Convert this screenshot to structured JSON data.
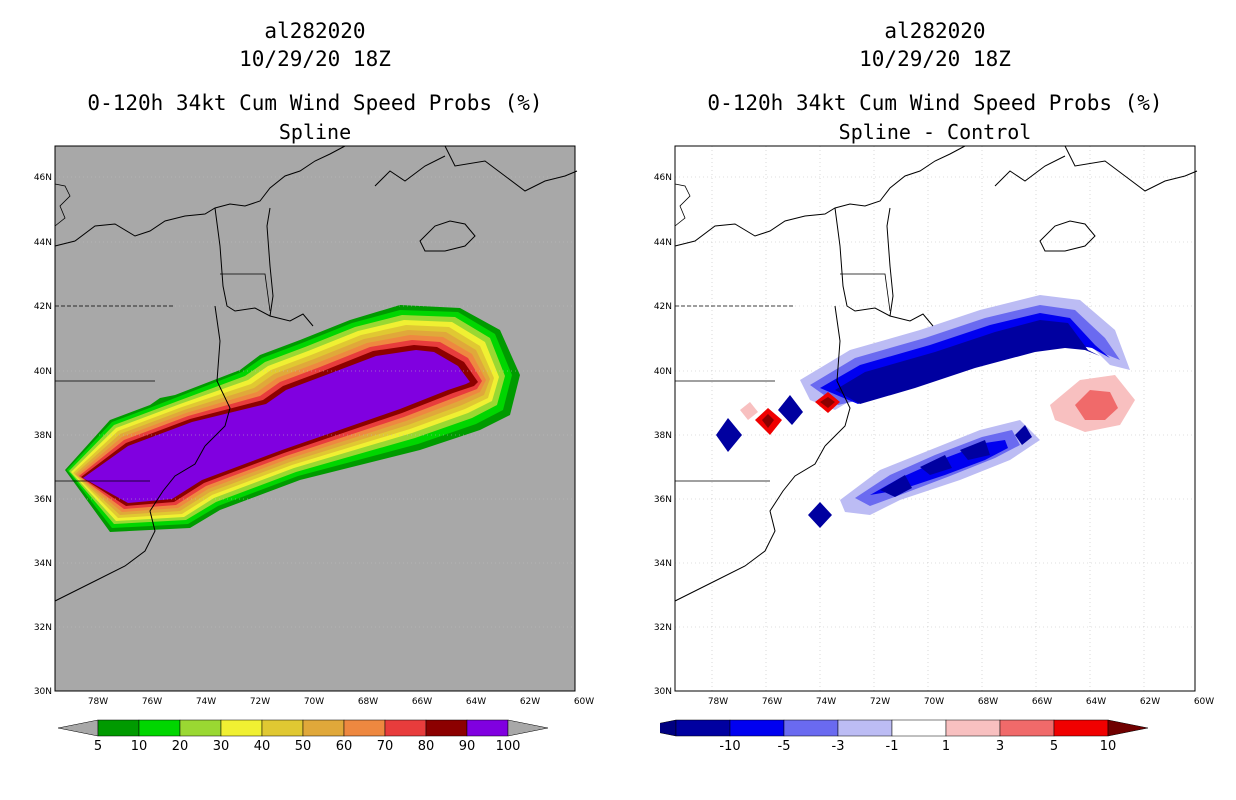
{
  "left": {
    "storm_id": "al282020",
    "datetime": "10/29/20 18Z",
    "product": "0-120h 34kt Cum Wind Speed Probs (%)",
    "subtitle": "Spline",
    "colorbar_labels": [
      "5",
      "10",
      "20",
      "30",
      "40",
      "50",
      "60",
      "70",
      "80",
      "90",
      "100"
    ],
    "colorbar_colors": [
      "#009a00",
      "#00d600",
      "#9ad832",
      "#f0f032",
      "#e0c832",
      "#e0a83a",
      "#ee8840",
      "#e83c3c",
      "#8c0000",
      "#8000e0"
    ]
  },
  "right": {
    "storm_id": "al282020",
    "datetime": "10/29/20 18Z",
    "product": "0-120h 34kt Cum Wind Speed Probs (%)",
    "subtitle": "Spline - Control",
    "colorbar_labels": [
      "-10",
      "-5",
      "-3",
      "-1",
      "1",
      "3",
      "5",
      "10"
    ],
    "colorbar_colors": [
      "#0000a0",
      "#0000f0",
      "#6a6af0",
      "#bcbcf4",
      "#ffffff",
      "#f8c0c0",
      "#f06a6a",
      "#f00000"
    ]
  },
  "axes": {
    "lat_labels": [
      "46N",
      "44N",
      "42N",
      "40N",
      "38N",
      "36N",
      "34N",
      "32N",
      "30N"
    ],
    "lon_labels": [
      "78W",
      "76W",
      "74W",
      "72W",
      "70W",
      "68W",
      "66W",
      "64W",
      "62W",
      "60W"
    ]
  },
  "colors": {
    "ocean_gray": "#a8a8a8",
    "grid": "#bfbfbf"
  }
}
